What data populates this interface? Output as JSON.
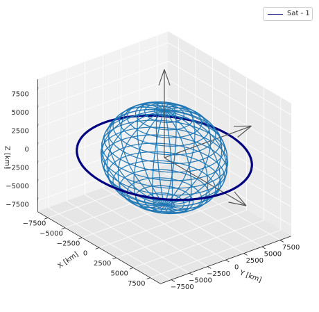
{
  "chart_data": {
    "type": "3d-orbit",
    "title": "",
    "xlabel": "X [km]",
    "ylabel": "Y [km]",
    "zlabel": "Z [km]",
    "xlim": [
      -9000,
      9000
    ],
    "ylim": [
      -9000,
      9000
    ],
    "zlim": [
      -9000,
      9000
    ],
    "x_ticks": [
      -7500,
      -5000,
      -2500,
      0,
      2500,
      5000,
      7500
    ],
    "y_ticks": [
      -7500,
      -5000,
      -2500,
      0,
      2500,
      5000,
      7500
    ],
    "z_ticks": [
      -7500,
      -5000,
      -2500,
      0,
      2500,
      5000,
      7500
    ],
    "grid": true,
    "legend_placement": "top-right",
    "legend": [
      "Sat - 1"
    ],
    "series": [
      {
        "name": "Sat - 1",
        "kind": "orbit",
        "radius": 8800,
        "inclination_deg": 0,
        "color": "#000080"
      }
    ],
    "earth": {
      "radius": 6378,
      "color": "#1f77b4",
      "style": "wireframe"
    },
    "reference_axes": {
      "length": 12000,
      "color": "#555555"
    }
  }
}
